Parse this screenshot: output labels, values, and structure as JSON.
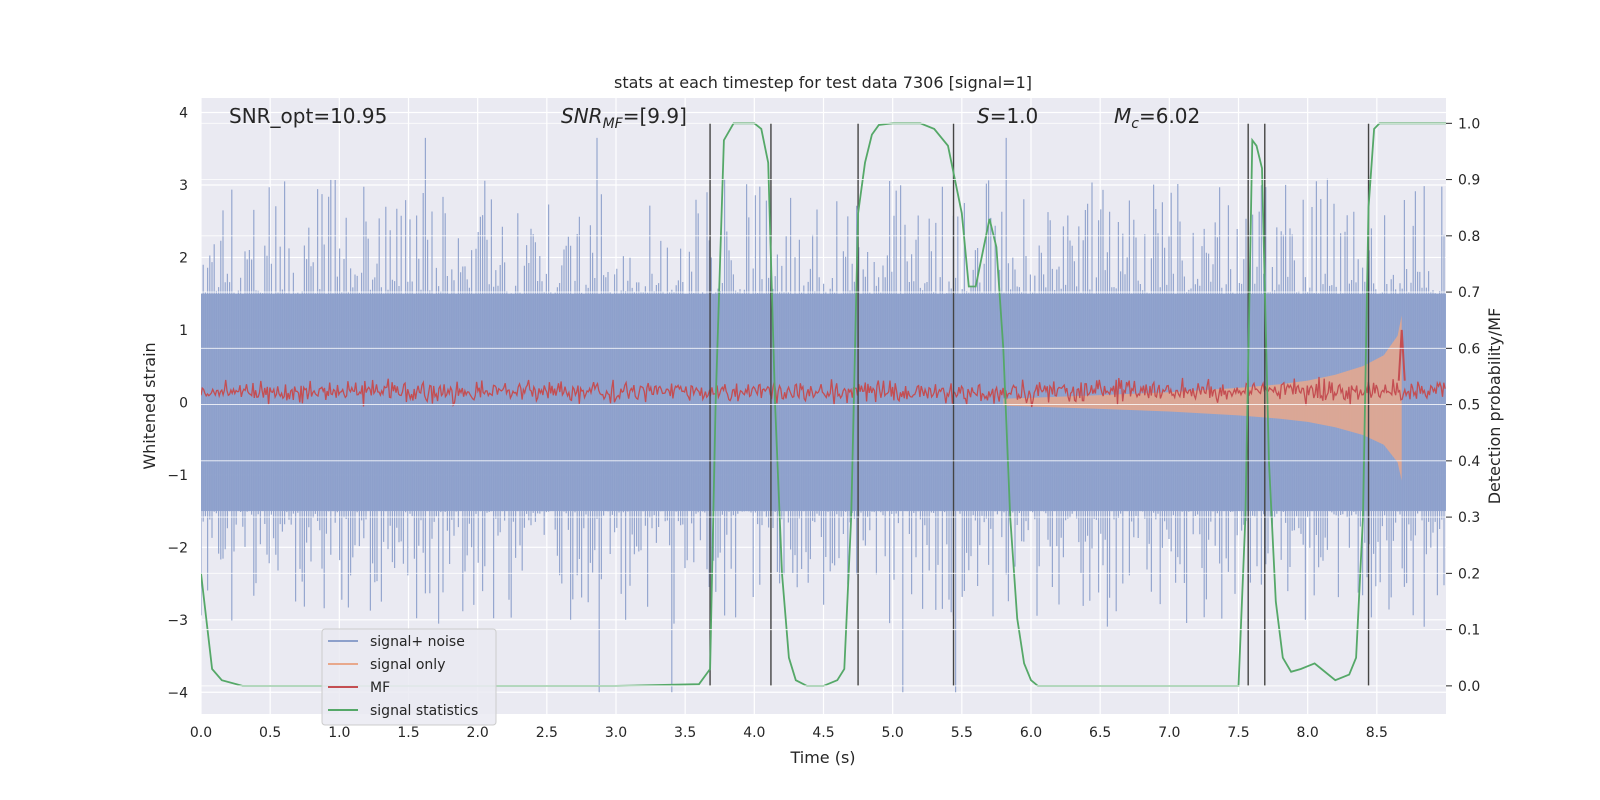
{
  "chart_data": {
    "type": "line",
    "title": "stats at each timestep for test data 7306 [signal=1]",
    "xlabel": "Time (s)",
    "ylabel": "Whitened strain",
    "ylabel_right": "Detection probability/MF",
    "xlim": [
      0.0,
      9.0
    ],
    "ylim": [
      -4.3,
      4.2
    ],
    "ylim_right": [
      -0.05,
      1.045
    ],
    "x_ticks": [
      0.0,
      0.5,
      1.0,
      1.5,
      2.0,
      2.5,
      3.0,
      3.5,
      4.0,
      4.5,
      5.0,
      5.5,
      6.0,
      6.5,
      7.0,
      7.5,
      8.0,
      8.5
    ],
    "x_tick_labels": [
      "0.0",
      "0.5",
      "1.0",
      "1.5",
      "2.0",
      "2.5",
      "3.0",
      "3.5",
      "4.0",
      "4.5",
      "5.0",
      "5.5",
      "6.0",
      "6.5",
      "7.0",
      "7.5",
      "8.0",
      "8.5"
    ],
    "y_ticks": [
      4,
      3,
      2,
      1,
      0,
      -1,
      -2,
      -3,
      -4
    ],
    "y_tick_labels": [
      "4",
      "3",
      "2",
      "1",
      "0",
      "−1",
      "−2",
      "−3",
      "−4"
    ],
    "y2_ticks": [
      1.0,
      0.9,
      0.8,
      0.7,
      0.6,
      0.5,
      0.4,
      0.3,
      0.2,
      0.1,
      0.0
    ],
    "y2_tick_labels": [
      "1.0",
      "0.9",
      "0.8",
      "0.7",
      "0.6",
      "0.5",
      "0.4",
      "0.3",
      "0.2",
      "0.1",
      "0.0"
    ],
    "grid": true,
    "annotations": [
      {
        "name": "snr-opt",
        "text": "SNR_opt=10.95",
        "x": 0.2
      },
      {
        "name": "snr-mf",
        "text": "SNR_MF=[9.9]",
        "x": 2.6
      },
      {
        "name": "s-value",
        "text": "S=1.0",
        "x": 5.6
      },
      {
        "name": "chirp-mass",
        "text": "M_c=6.02",
        "x": 6.6
      }
    ],
    "annot_parts": {
      "snr_opt": "SNR_opt=10.95",
      "snr_mf_main": "SNR",
      "snr_mf_sub": "MF",
      "snr_mf_value": "=[9.9]",
      "s_symbol": "S",
      "s_value": "=1.0",
      "mc_symbol": "M",
      "mc_sub": "c",
      "mc_value": "=6.02"
    },
    "vertical_lines_x": [
      3.68,
      4.12,
      4.75,
      5.44,
      7.57,
      7.69,
      8.44
    ],
    "legend": {
      "placement": "lower-left",
      "entries": [
        {
          "label": "signal+ noise",
          "color": "#8da0cb"
        },
        {
          "label": "signal only",
          "color": "#e8a88c"
        },
        {
          "label": "MF",
          "color": "#c44e52"
        },
        {
          "label": "signal statistics",
          "color": "#55a868"
        }
      ]
    },
    "series": [
      {
        "name": "signal+ noise",
        "axis": "left",
        "style": "noise-band",
        "color": "#8da0cb",
        "x_range": [
          0.0,
          9.0
        ],
        "core_amplitude": 1.5,
        "typical_peak": 2.3,
        "max_peak": 3.65,
        "min_trough": -4.0
      },
      {
        "name": "signal only",
        "axis": "left",
        "style": "chirp-envelope",
        "color": "#e8a88c",
        "x": [
          5.8,
          6.5,
          7.0,
          7.5,
          7.8,
          8.0,
          8.2,
          8.4,
          8.55,
          8.65,
          8.68
        ],
        "amplitude": [
          0.05,
          0.1,
          0.14,
          0.2,
          0.25,
          0.3,
          0.38,
          0.5,
          0.65,
          0.92,
          1.2
        ]
      },
      {
        "name": "MF",
        "axis": "left",
        "style": "noisy-line",
        "color": "#c44e52",
        "baseline": 0.15,
        "jitter": 0.15,
        "peak": {
          "x": 8.68,
          "value": 1.0
        },
        "x_range": [
          0.0,
          9.0
        ]
      },
      {
        "name": "signal statistics",
        "axis": "right",
        "color": "#55a868",
        "x": [
          0.0,
          0.08,
          0.15,
          0.3,
          0.5,
          1.0,
          2.0,
          3.0,
          3.6,
          3.68,
          3.72,
          3.78,
          3.85,
          4.0,
          4.05,
          4.1,
          4.15,
          4.2,
          4.25,
          4.3,
          4.38,
          4.5,
          4.6,
          4.65,
          4.7,
          4.75,
          4.8,
          4.85,
          4.9,
          5.0,
          5.2,
          5.3,
          5.4,
          5.45,
          5.5,
          5.55,
          5.6,
          5.65,
          5.7,
          5.75,
          5.8,
          5.85,
          5.9,
          5.95,
          6.0,
          6.05,
          6.1,
          6.3,
          7.0,
          7.5,
          7.55,
          7.6,
          7.63,
          7.67,
          7.72,
          7.77,
          7.82,
          7.88,
          7.95,
          8.0,
          8.05,
          8.1,
          8.2,
          8.3,
          8.35,
          8.4,
          8.44,
          8.48,
          8.52,
          8.6,
          9.0
        ],
        "values": [
          0.2,
          0.03,
          0.01,
          0.0,
          0.0,
          0.0,
          0.0,
          0.0,
          0.003,
          0.03,
          0.5,
          0.97,
          1.0,
          1.0,
          0.99,
          0.93,
          0.5,
          0.2,
          0.05,
          0.01,
          0.0,
          0.0,
          0.01,
          0.03,
          0.3,
          0.84,
          0.93,
          0.98,
          0.997,
          1.0,
          1.0,
          0.99,
          0.96,
          0.9,
          0.84,
          0.71,
          0.71,
          0.77,
          0.83,
          0.78,
          0.6,
          0.3,
          0.12,
          0.04,
          0.01,
          0.0,
          0.0,
          0.0,
          0.0,
          0.0,
          0.3,
          0.97,
          0.96,
          0.92,
          0.4,
          0.15,
          0.05,
          0.025,
          0.03,
          0.035,
          0.04,
          0.03,
          0.01,
          0.02,
          0.05,
          0.3,
          0.85,
          0.99,
          1.0,
          1.0,
          1.0
        ]
      }
    ]
  }
}
